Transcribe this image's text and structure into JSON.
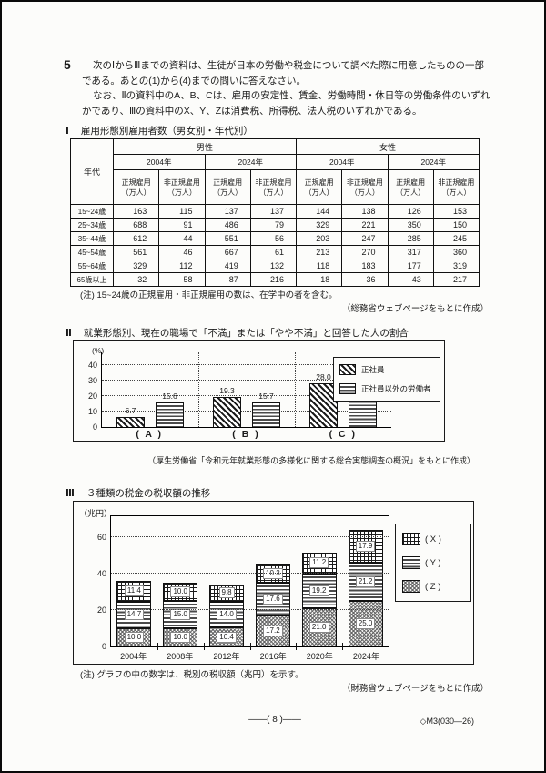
{
  "page": {
    "question_number": "5",
    "intro_p1": "次のⅠからⅢまでの資料は、生徒が日本の労働や税金について調べた際に用意したものの一部である。あとの(1)から(4)までの問いに答えなさい。",
    "intro_p2": "なお、Ⅱの資料中のA、B、Cは、雇用の安定性、賃金、労働時間・休日等の労働条件のいずれかであり、Ⅲの資料中のX、Y、Zは消費税、所得税、法人税のいずれかである。",
    "footer_page": "——( 8 )——",
    "footer_code": "◇M3(030—26)"
  },
  "table1": {
    "numeral": "Ⅰ",
    "title": "雇用形態別雇用者数（男女別・年代別）",
    "age_header": "年代",
    "gender_headers": [
      "男性",
      "女性"
    ],
    "year_headers": [
      "2004年",
      "2024年",
      "2004年",
      "2024年"
    ],
    "type_headers": [
      {
        "l1": "正規雇用",
        "l2": "（万人）"
      },
      {
        "l1": "非正規雇用",
        "l2": "（万人）"
      },
      {
        "l1": "正規雇用",
        "l2": "（万人）"
      },
      {
        "l1": "非正規雇用",
        "l2": "（万人）"
      },
      {
        "l1": "正規雇用",
        "l2": "（万人）"
      },
      {
        "l1": "非正規雇用",
        "l2": "（万人）"
      },
      {
        "l1": "正規雇用",
        "l2": "（万人）"
      },
      {
        "l1": "非正規雇用",
        "l2": "（万人）"
      }
    ],
    "rows": [
      {
        "age": "15~24歳",
        "values": [
          "163",
          "115",
          "137",
          "137",
          "144",
          "138",
          "126",
          "153"
        ]
      },
      {
        "age": "25~34歳",
        "values": [
          "688",
          "91",
          "486",
          "79",
          "329",
          "221",
          "350",
          "150"
        ]
      },
      {
        "age": "35~44歳",
        "values": [
          "612",
          "44",
          "551",
          "56",
          "203",
          "247",
          "285",
          "245"
        ]
      },
      {
        "age": "45~54歳",
        "values": [
          "561",
          "46",
          "667",
          "61",
          "213",
          "270",
          "317",
          "360"
        ]
      },
      {
        "age": "55~64歳",
        "values": [
          "329",
          "112",
          "419",
          "132",
          "118",
          "183",
          "177",
          "319"
        ]
      },
      {
        "age": "65歳以上",
        "values": [
          "32",
          "58",
          "87",
          "216",
          "18",
          "36",
          "43",
          "217"
        ]
      }
    ],
    "note": "(注) 15~24歳の正規雇用・非正規雇用の数は、在学中の者を含む。",
    "source": "（総務省ウェブページをもとに作成）"
  },
  "chart_data": [
    {
      "type": "bar",
      "numeral": "Ⅱ",
      "title": "就業形態別、現在の職場で「不満」または「やや不満」と回答した人の割合",
      "unit": "(%)",
      "categories": [
        "( A )",
        "( B )",
        "( C )"
      ],
      "yticks": [
        0,
        10,
        20,
        30,
        40
      ],
      "ylim": [
        0,
        48
      ],
      "grid": "dotted-horizontal",
      "legend_position": "top-right",
      "series": [
        {
          "name": "正社員",
          "pattern": "diagonal-hatch",
          "values": [
            6.7,
            19.3,
            28.0
          ],
          "labels": [
            "6.7",
            "19.3",
            "28.0"
          ]
        },
        {
          "name": "正社員以外の労働者",
          "pattern": "horizontal-lines",
          "values": [
            15.6,
            15.7,
            34.0
          ],
          "labels": [
            "15.6",
            "15.7",
            "34.0"
          ]
        }
      ],
      "source": "（厚生労働省「令和元年就業形態の多様化に関する総合実態調査の概況」をもとに作成）"
    },
    {
      "type": "stacked-bar",
      "numeral": "Ⅲ",
      "title": "３種類の税金の税収額の推移",
      "unit": "（兆円）",
      "categories": [
        "2004年",
        "2008年",
        "2012年",
        "2016年",
        "2020年",
        "2024年"
      ],
      "yticks": [
        0,
        20,
        40,
        60
      ],
      "ylim": [
        0,
        72
      ],
      "grid": "dotted-horizontal",
      "legend_position": "right",
      "stack_order": "bottom-to-top",
      "series": [
        {
          "name": "( Z )",
          "pattern": "dense-crosshatch",
          "values": [
            10.0,
            10.0,
            10.4,
            17.2,
            21.0,
            25.0
          ],
          "labels": [
            "10.0",
            "10.0",
            "10.4",
            "17.2",
            "21.0",
            "25.0"
          ]
        },
        {
          "name": "( Y )",
          "pattern": "horizontal-lines",
          "values": [
            14.7,
            15.0,
            14.0,
            17.6,
            19.2,
            21.2
          ],
          "labels": [
            "14.7",
            "15.0",
            "14.0",
            "17.6",
            "19.2",
            "21.2"
          ]
        },
        {
          "name": "( X )",
          "pattern": "grid-check",
          "values": [
            11.4,
            10.0,
            9.8,
            10.3,
            11.2,
            17.9
          ],
          "labels": [
            "11.4",
            "10.0",
            "9.8",
            "10.3",
            "11.2",
            "17.9"
          ]
        }
      ],
      "legend": [
        {
          "label": "( X )",
          "pattern": "grid-check"
        },
        {
          "label": "( Y )",
          "pattern": "horizontal-lines"
        },
        {
          "label": "( Z )",
          "pattern": "dense-crosshatch"
        }
      ],
      "note": "(注) グラフの中の数字は、税別の税収額（兆円）を示す。",
      "source": "（財務省ウェブページをもとに作成）"
    }
  ]
}
